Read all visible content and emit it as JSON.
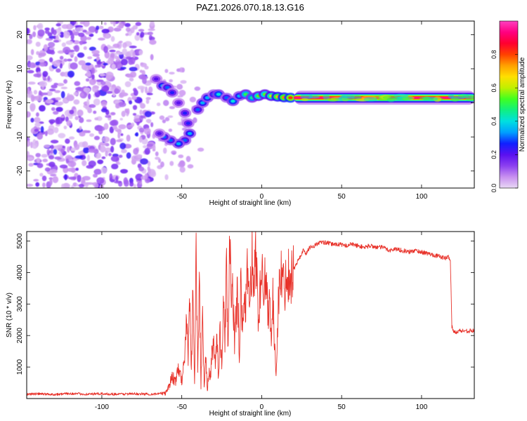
{
  "title": "PAZ1.2026.070.18.13.G16",
  "chart_data": [
    {
      "type": "heatmap",
      "title": "PAZ1.2026.070.18.13.G16",
      "xlabel": "Height of straight line (km)",
      "ylabel": "Frequency (Hz)",
      "xlim": [
        -147,
        133
      ],
      "ylim": [
        -25,
        24
      ],
      "xticks": [
        -100,
        -50,
        0,
        50,
        100
      ],
      "xtick_labels": [
        "-100",
        "-50",
        "0",
        "50",
        "100"
      ],
      "yticks": [
        -20,
        -10,
        0,
        10,
        20
      ],
      "ytick_labels": [
        "-20",
        "-10",
        "0",
        "10",
        "20"
      ],
      "colorbar": {
        "label": "Normalized spectral amplitude",
        "range": [
          0,
          1
        ],
        "ticks": [
          0,
          0.2,
          0.4,
          0.6,
          0.8
        ],
        "tick_labels": [
          "0.0",
          "0.2",
          "0.4",
          "0.6",
          "0.8"
        ],
        "colormap": [
          "#e8d8f5",
          "#c890f0",
          "#8c40f0",
          "#5a10f0",
          "#1020ff",
          "#00a0ff",
          "#00e0e0",
          "#10f080",
          "#40ff20",
          "#c0f000",
          "#ffe000",
          "#ffa000",
          "#ff4000",
          "#ff0030",
          "#ff0080",
          "#ff40c0"
        ]
      },
      "features": {
        "noise_region_height_km": [
          -147,
          -68
        ],
        "transition_points": [
          {
            "x": -66,
            "freq": 7,
            "amp": 0.2
          },
          {
            "x": -62,
            "freq": 5,
            "amp": 0.35
          },
          {
            "x": -59,
            "freq": 4.5,
            "amp": 0.3
          },
          {
            "x": -56,
            "freq": 3,
            "amp": 0.25
          },
          {
            "x": -52,
            "freq": 0,
            "amp": 0.2
          },
          {
            "x": -48,
            "freq": -3,
            "amp": 0.25
          },
          {
            "x": -46,
            "freq": -6,
            "amp": 0.25
          },
          {
            "x": -45,
            "freq": -9,
            "amp": 0.35
          },
          {
            "x": -48,
            "freq": -11,
            "amp": 0.3
          },
          {
            "x": -52,
            "freq": -12,
            "amp": 0.35
          },
          {
            "x": -57,
            "freq": -11,
            "amp": 0.3
          },
          {
            "x": -61,
            "freq": -10,
            "amp": 0.3
          },
          {
            "x": -64,
            "freq": -9,
            "amp": 0.2
          },
          {
            "x": -40,
            "freq": -2,
            "amp": 0.3
          },
          {
            "x": -37,
            "freq": 0,
            "amp": 0.35
          },
          {
            "x": -34,
            "freq": 1.5,
            "amp": 0.35
          },
          {
            "x": -30,
            "freq": 2.5,
            "amp": 0.3
          },
          {
            "x": -27,
            "freq": 2.5,
            "amp": 0.4
          },
          {
            "x": -22,
            "freq": 1.5,
            "amp": 0.3
          },
          {
            "x": -18,
            "freq": 0.5,
            "amp": 0.4
          },
          {
            "x": -14,
            "freq": 2,
            "amp": 0.35
          },
          {
            "x": -10,
            "freq": 2.5,
            "amp": 0.5
          },
          {
            "x": -6,
            "freq": 1.5,
            "amp": 0.45
          },
          {
            "x": -2,
            "freq": 2,
            "amp": 0.55
          },
          {
            "x": 2,
            "freq": 2.5,
            "amp": 0.55
          },
          {
            "x": 6,
            "freq": 2,
            "amp": 0.6
          },
          {
            "x": 10,
            "freq": 1.8,
            "amp": 0.7
          },
          {
            "x": 14,
            "freq": 1.6,
            "amp": 0.75
          },
          {
            "x": 18,
            "freq": 1.5,
            "amp": 0.8
          }
        ],
        "stable_line": {
          "x_start": 20,
          "x_end": 133,
          "freq": 1.5,
          "amp": 0.95
        }
      }
    },
    {
      "type": "line",
      "xlabel": "Height of straight line (km)",
      "ylabel": "SNR (10 * v/v)",
      "xlim": [
        -147,
        133
      ],
      "ylim": [
        0,
        5300
      ],
      "xticks": [
        -100,
        -50,
        0,
        50,
        100
      ],
      "xtick_labels": [
        "-100",
        "-50",
        "0",
        "50",
        "100"
      ],
      "yticks": [
        1000,
        2000,
        3000,
        4000,
        5000
      ],
      "ytick_labels": [
        "1000",
        "2000",
        "3000",
        "4000",
        "5000"
      ],
      "color": "#e8322a",
      "series": [
        {
          "name": "SNR",
          "x": [
            -147,
            -140,
            -130,
            -120,
            -110,
            -100,
            -90,
            -80,
            -70,
            -64,
            -60,
            -58,
            -56,
            -54,
            -52,
            -50,
            -48,
            -47,
            -46,
            -45,
            -44,
            -43,
            -42,
            -41,
            -40,
            -39,
            -38,
            -37,
            -36,
            -35,
            -34,
            -33,
            -32,
            -31,
            -30,
            -29,
            -28,
            -27,
            -26,
            -25,
            -24,
            -23,
            -22,
            -21,
            -20,
            -19,
            -18,
            -17,
            -16,
            -15,
            -14,
            -13,
            -12,
            -11,
            -10,
            -9,
            -8,
            -7,
            -6,
            -5,
            -4,
            -3,
            -2,
            -1,
            0,
            1,
            2,
            3,
            4,
            5,
            6,
            7,
            8,
            9,
            10,
            11,
            12,
            14,
            16,
            18,
            20,
            22,
            24,
            26,
            28,
            30,
            33,
            36,
            40,
            44,
            48,
            52,
            56,
            60,
            64,
            68,
            72,
            76,
            80,
            84,
            88,
            92,
            96,
            100,
            104,
            108,
            112,
            115,
            117,
            118,
            119,
            120,
            124,
            128,
            133
          ],
          "y": [
            140,
            150,
            130,
            160,
            140,
            150,
            140,
            150,
            140,
            150,
            200,
            400,
            700,
            550,
            900,
            600,
            1300,
            2900,
            1200,
            3500,
            900,
            3300,
            400,
            4700,
            800,
            3900,
            350,
            2600,
            300,
            1400,
            280,
            800,
            700,
            1500,
            1800,
            1100,
            2000,
            600,
            2200,
            1000,
            2900,
            1900,
            4300,
            1500,
            5300,
            2600,
            3500,
            1800,
            2700,
            3400,
            1000,
            4300,
            1900,
            3300,
            2700,
            3900,
            3200,
            3500,
            4600,
            3100,
            4700,
            3900,
            2400,
            3400,
            3800,
            3700,
            4000,
            3400,
            2800,
            3200,
            2000,
            3100,
            1600,
            900,
            2500,
            3500,
            4000,
            3500,
            4000,
            3900,
            4100,
            4300,
            4500,
            4700,
            4600,
            4800,
            4850,
            4950,
            4950,
            4900,
            4900,
            4850,
            4900,
            4850,
            4800,
            4850,
            4800,
            4800,
            4700,
            4750,
            4700,
            4650,
            4700,
            4650,
            4600,
            4550,
            4500,
            4450,
            4500,
            4400,
            2300,
            2100,
            2150,
            2150,
            2150
          ]
        }
      ]
    }
  ]
}
